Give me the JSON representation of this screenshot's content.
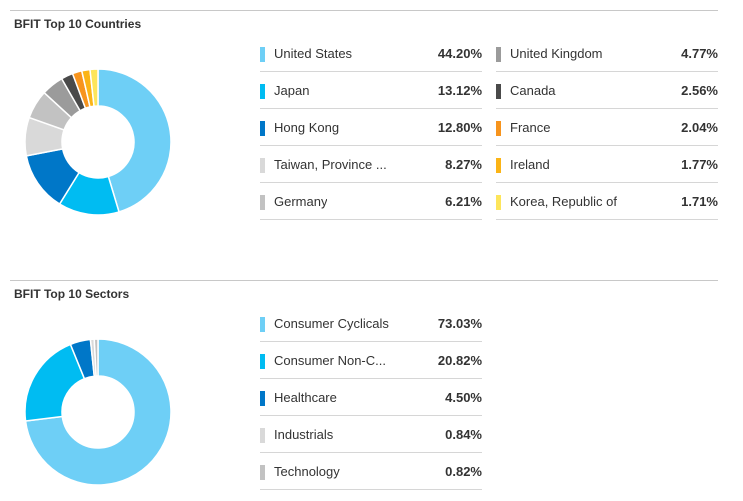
{
  "chart_data": [
    {
      "type": "pie",
      "title": "BFIT Top 10 Countries",
      "categories": [
        "United States",
        "Japan",
        "Hong Kong",
        "Taiwan, Province ...",
        "Germany",
        "United Kingdom",
        "Canada",
        "France",
        "Ireland",
        "Korea, Republic of"
      ],
      "values": [
        44.2,
        13.12,
        12.8,
        8.27,
        6.21,
        4.77,
        2.56,
        2.04,
        1.77,
        1.71
      ],
      "labels": [
        "44.20%",
        "13.12%",
        "12.80%",
        "8.27%",
        "6.21%",
        "4.77%",
        "2.56%",
        "2.04%",
        "1.77%",
        "1.71%"
      ],
      "colors": [
        "#6ecff6",
        "#00bcf2",
        "#0077c8",
        "#d9d9d9",
        "#c2c2c2",
        "#9b9b9b",
        "#4a4a4a",
        "#f7941d",
        "#fbb416",
        "#fde55b"
      ]
    },
    {
      "type": "pie",
      "title": "BFIT Top 10 Sectors",
      "categories": [
        "Consumer Cyclicals",
        "Consumer Non-C...",
        "Healthcare",
        "Industrials",
        "Technology"
      ],
      "values": [
        73.03,
        20.82,
        4.5,
        0.84,
        0.82
      ],
      "labels": [
        "73.03%",
        "20.82%",
        "4.50%",
        "0.84%",
        "0.82%"
      ],
      "colors": [
        "#6ecff6",
        "#00bcf2",
        "#0077c8",
        "#d9d9d9",
        "#c2c2c2"
      ]
    }
  ]
}
